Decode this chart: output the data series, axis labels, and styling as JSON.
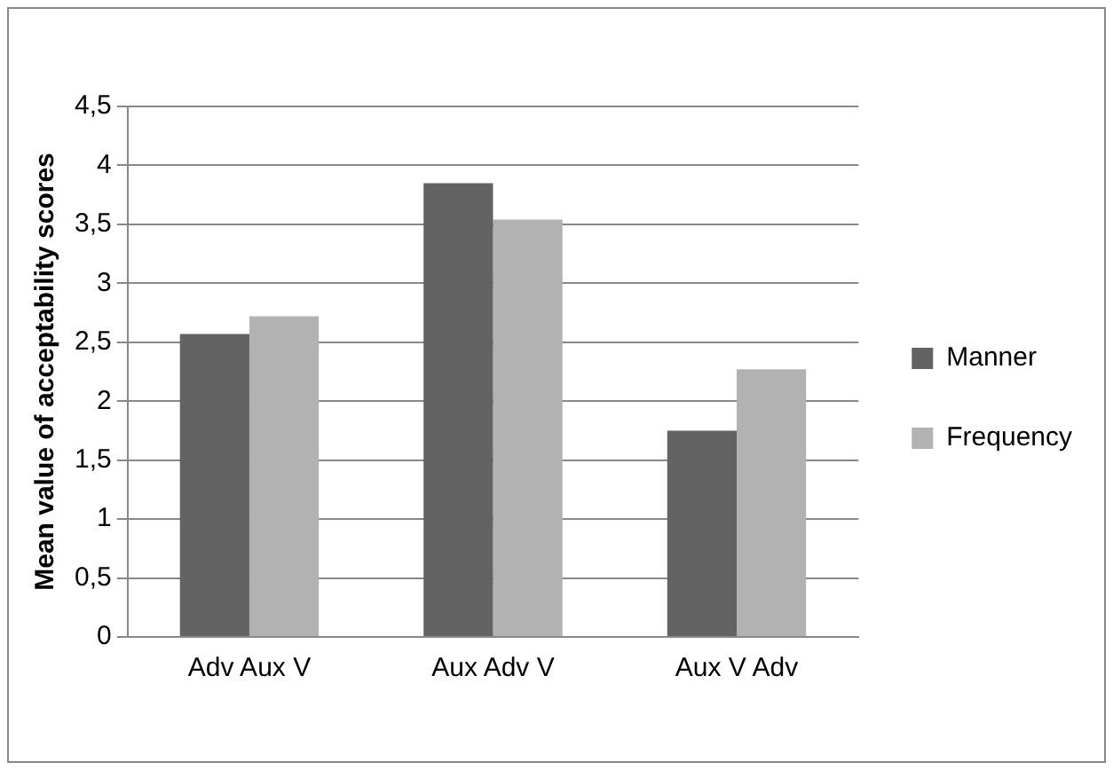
{
  "chart_data": {
    "type": "bar",
    "ylabel": "Mean value of acceptability scores",
    "categories": [
      "Adv Aux V",
      "Aux Adv V",
      "Aux V Adv"
    ],
    "series": [
      {
        "name": "Manner",
        "color": "#636363",
        "values": [
          2.57,
          3.85,
          1.75
        ]
      },
      {
        "name": "Frequency",
        "color": "#b2b2b2",
        "values": [
          2.72,
          3.54,
          2.27
        ]
      }
    ],
    "ylim": [
      0,
      4.5
    ],
    "yticks": [
      0,
      {
        "value": 0.5,
        "label": "0,5"
      },
      1,
      {
        "value": 1.5,
        "label": "1,5"
      },
      2,
      {
        "value": 2.5,
        "label": "2,5"
      },
      3,
      {
        "value": 3.5,
        "label": "3,5"
      },
      4,
      {
        "value": 4.5,
        "label": "4,5"
      }
    ],
    "grid": "y",
    "legend": "right"
  }
}
